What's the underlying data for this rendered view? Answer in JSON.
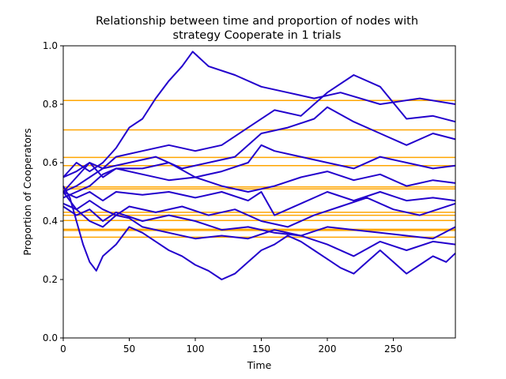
{
  "chart_data": {
    "type": "line",
    "title_line1": "Relationship between time and proportion of nodes with",
    "title_line2": "strategy Cooperate in 1 trials",
    "xlabel": "Time",
    "ylabel": "Proportion of Cooperators",
    "xlim": [
      0,
      297
    ],
    "ylim": [
      0,
      1
    ],
    "xticks": [
      0,
      50,
      100,
      150,
      200,
      250
    ],
    "xtick_labels": [
      "0",
      "50",
      "100",
      "150",
      "200",
      "250"
    ],
    "yticks": [
      0.0,
      0.2,
      0.4,
      0.6,
      0.8,
      1.0
    ],
    "ytick_labels": [
      "0.0",
      "0.2",
      "0.4",
      "0.6",
      "0.8",
      "1.0"
    ],
    "grid": false,
    "colors": {
      "series": "#2200cc",
      "reference": "#ffa500"
    },
    "reference_lines": [
      0.813,
      0.712,
      0.618,
      0.59,
      0.517,
      0.51,
      0.43,
      0.42,
      0.402,
      0.372,
      0.368,
      0.345
    ],
    "series": [
      {
        "x": [
          0,
          10,
          20,
          30,
          40,
          50,
          60,
          70,
          80,
          90,
          98,
          110,
          130,
          150,
          170,
          190,
          210,
          240,
          270,
          297
        ],
        "values": [
          0.55,
          0.6,
          0.57,
          0.6,
          0.65,
          0.72,
          0.75,
          0.82,
          0.88,
          0.93,
          0.98,
          0.93,
          0.9,
          0.86,
          0.84,
          0.82,
          0.84,
          0.8,
          0.82,
          0.8
        ]
      },
      {
        "x": [
          0,
          10,
          20,
          30,
          40,
          60,
          80,
          100,
          120,
          140,
          160,
          180,
          200,
          220,
          240,
          260,
          280,
          297
        ],
        "values": [
          0.5,
          0.55,
          0.6,
          0.58,
          0.62,
          0.64,
          0.66,
          0.64,
          0.66,
          0.72,
          0.78,
          0.76,
          0.84,
          0.9,
          0.86,
          0.75,
          0.76,
          0.74
        ]
      },
      {
        "x": [
          0,
          10,
          20,
          30,
          50,
          70,
          90,
          110,
          130,
          150,
          170,
          190,
          200,
          220,
          240,
          260,
          280,
          297
        ],
        "values": [
          0.5,
          0.52,
          0.55,
          0.58,
          0.6,
          0.62,
          0.58,
          0.6,
          0.62,
          0.7,
          0.72,
          0.75,
          0.79,
          0.74,
          0.7,
          0.66,
          0.7,
          0.68
        ]
      },
      {
        "x": [
          0,
          10,
          20,
          30,
          40,
          60,
          80,
          100,
          120,
          140,
          150,
          160,
          180,
          200,
          220,
          240,
          260,
          280,
          297
        ],
        "values": [
          0.55,
          0.57,
          0.6,
          0.55,
          0.58,
          0.58,
          0.6,
          0.55,
          0.57,
          0.6,
          0.66,
          0.64,
          0.62,
          0.6,
          0.58,
          0.62,
          0.6,
          0.58,
          0.59
        ]
      },
      {
        "x": [
          0,
          10,
          20,
          30,
          40,
          60,
          80,
          100,
          120,
          140,
          160,
          180,
          200,
          220,
          240,
          260,
          280,
          297
        ],
        "values": [
          0.48,
          0.5,
          0.52,
          0.56,
          0.58,
          0.56,
          0.54,
          0.55,
          0.52,
          0.5,
          0.52,
          0.55,
          0.57,
          0.54,
          0.56,
          0.52,
          0.54,
          0.53
        ]
      },
      {
        "x": [
          0,
          10,
          20,
          30,
          40,
          60,
          80,
          100,
          120,
          140,
          150,
          160,
          180,
          200,
          220,
          240,
          260,
          280,
          297
        ],
        "values": [
          0.5,
          0.48,
          0.5,
          0.47,
          0.5,
          0.49,
          0.5,
          0.48,
          0.5,
          0.47,
          0.5,
          0.42,
          0.46,
          0.5,
          0.47,
          0.5,
          0.47,
          0.48,
          0.47
        ]
      },
      {
        "x": [
          0,
          10,
          20,
          30,
          40,
          50,
          70,
          90,
          110,
          130,
          150,
          170,
          190,
          210,
          230,
          250,
          270,
          297
        ],
        "values": [
          0.46,
          0.44,
          0.47,
          0.44,
          0.42,
          0.45,
          0.43,
          0.45,
          0.42,
          0.44,
          0.4,
          0.38,
          0.42,
          0.45,
          0.48,
          0.44,
          0.42,
          0.46
        ]
      },
      {
        "x": [
          0,
          10,
          20,
          30,
          40,
          60,
          80,
          100,
          120,
          140,
          160,
          180,
          200,
          220,
          240,
          260,
          280,
          297
        ],
        "values": [
          0.45,
          0.42,
          0.44,
          0.4,
          0.43,
          0.4,
          0.42,
          0.4,
          0.37,
          0.38,
          0.36,
          0.35,
          0.38,
          0.37,
          0.36,
          0.35,
          0.34,
          0.38
        ]
      },
      {
        "x": [
          0,
          10,
          20,
          30,
          40,
          50,
          60,
          80,
          100,
          120,
          140,
          160,
          180,
          200,
          220,
          240,
          260,
          280,
          297
        ],
        "values": [
          0.5,
          0.44,
          0.4,
          0.38,
          0.42,
          0.41,
          0.38,
          0.36,
          0.34,
          0.35,
          0.34,
          0.37,
          0.35,
          0.32,
          0.28,
          0.33,
          0.3,
          0.33,
          0.32
        ]
      },
      {
        "x": [
          0,
          5,
          10,
          15,
          20,
          25,
          30,
          40,
          50,
          60,
          70,
          80,
          90,
          100,
          110,
          120,
          130,
          140,
          150,
          160,
          170,
          180,
          190,
          200,
          210,
          220,
          230,
          240,
          250,
          260,
          270,
          280,
          290,
          297
        ],
        "values": [
          0.52,
          0.48,
          0.4,
          0.32,
          0.26,
          0.23,
          0.28,
          0.32,
          0.38,
          0.36,
          0.33,
          0.3,
          0.28,
          0.25,
          0.23,
          0.2,
          0.22,
          0.26,
          0.3,
          0.32,
          0.35,
          0.33,
          0.3,
          0.27,
          0.24,
          0.22,
          0.26,
          0.3,
          0.26,
          0.22,
          0.25,
          0.28,
          0.26,
          0.29
        ]
      }
    ]
  }
}
